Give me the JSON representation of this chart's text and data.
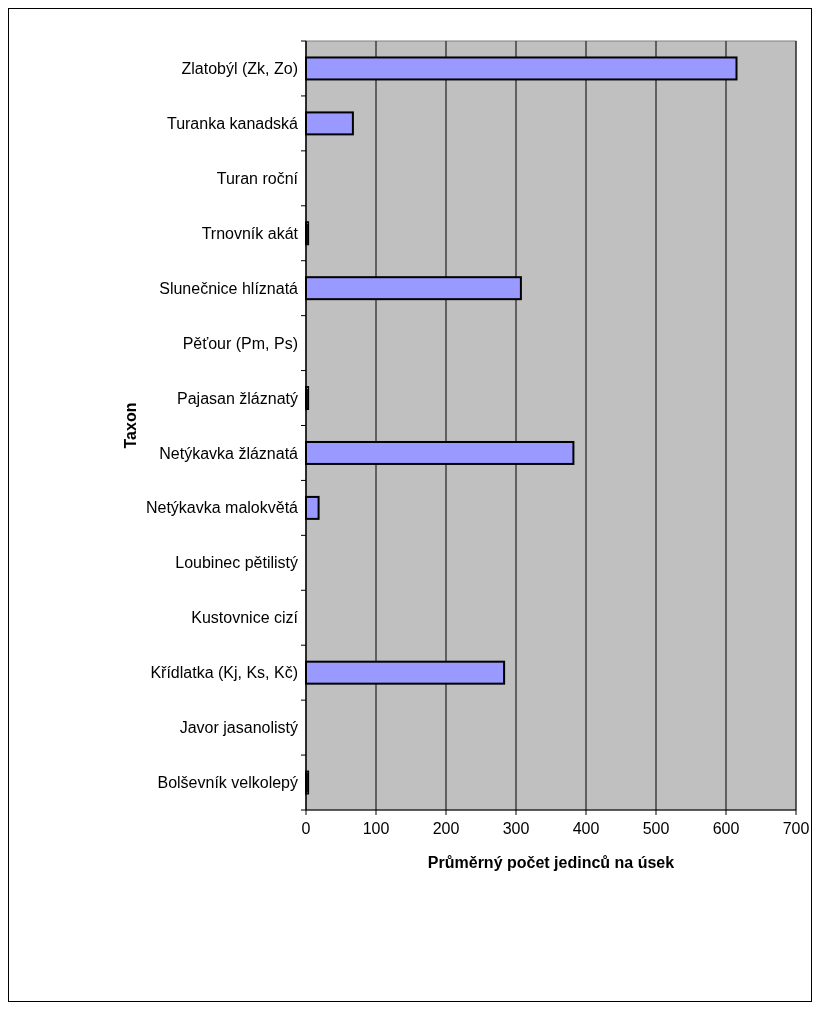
{
  "chart_data": {
    "type": "bar",
    "orientation": "horizontal",
    "xlabel": "Průměrný počet jedinců na úsek",
    "ylabel": "Taxon",
    "categories": [
      "Zlatobýl (Zk, Zo)",
      "Turanka kanadská",
      "Turan roční",
      "Trnovník akát",
      "Slunečnice hlíznatá",
      "Pěťour (Pm, Ps)",
      "Pajasan žláznatý",
      "Netýkavka žláznatá",
      "Netýkavka malokvětá",
      "Loubinec pětilistý",
      "Kustovnice cizí",
      "Křídlatka (Kj, Ks, Kč)",
      "Javor jasanolistý",
      "Bolševník velkolepý"
    ],
    "values": [
      615,
      67,
      0,
      3,
      307,
      0,
      3,
      382,
      18,
      0,
      0,
      283,
      0,
      3
    ],
    "color": "#9999ff",
    "xlim": [
      0,
      700
    ],
    "xticks": [
      0,
      100,
      200,
      300,
      400,
      500,
      600,
      700
    ],
    "grid": "x"
  }
}
